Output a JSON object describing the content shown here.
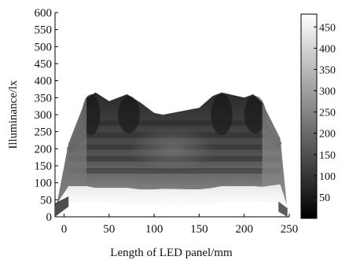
{
  "chart_data": {
    "type": "heatmap",
    "title": "",
    "xlabel": "Length of LED panel/mm",
    "ylabel": "Illuminance/lx",
    "x_ticks": [
      "0",
      "50",
      "100",
      "150",
      "200",
      "250"
    ],
    "y_ticks": [
      "0",
      "50",
      "100",
      "150",
      "200",
      "250",
      "300",
      "350",
      "400",
      "450",
      "500",
      "550",
      "600"
    ],
    "xlim": [
      -10,
      250
    ],
    "ylim": [
      0,
      600
    ],
    "colorbar": {
      "ticks": [
        "50",
        "100",
        "150",
        "200",
        "250",
        "300",
        "350",
        "400",
        "450"
      ],
      "range": [
        0,
        480
      ],
      "colormap": "gray"
    },
    "grid": false,
    "surface": {
      "x_mm": [
        -10,
        5,
        25,
        35,
        50,
        70,
        85,
        100,
        110,
        150,
        165,
        175,
        200,
        210,
        220,
        240,
        248
      ],
      "top_illuminance": [
        10,
        215,
        350,
        365,
        340,
        360,
        335,
        305,
        300,
        320,
        355,
        365,
        350,
        360,
        335,
        230,
        15
      ],
      "front_edge_illuminance": [
        0,
        35,
        48,
        44,
        40,
        38,
        36,
        34,
        33,
        34,
        38,
        42,
        45,
        46,
        44,
        40,
        0
      ],
      "back_edge_illuminance": [
        210,
        250,
        365,
        370,
        355,
        365,
        345,
        335,
        330,
        340,
        360,
        370,
        360,
        365,
        345,
        270,
        240
      ],
      "front_face_top_illuminance": [
        30,
        90,
        90,
        85,
        85,
        85,
        80,
        80,
        82,
        80,
        85,
        90,
        90,
        90,
        88,
        95,
        30
      ]
    }
  }
}
